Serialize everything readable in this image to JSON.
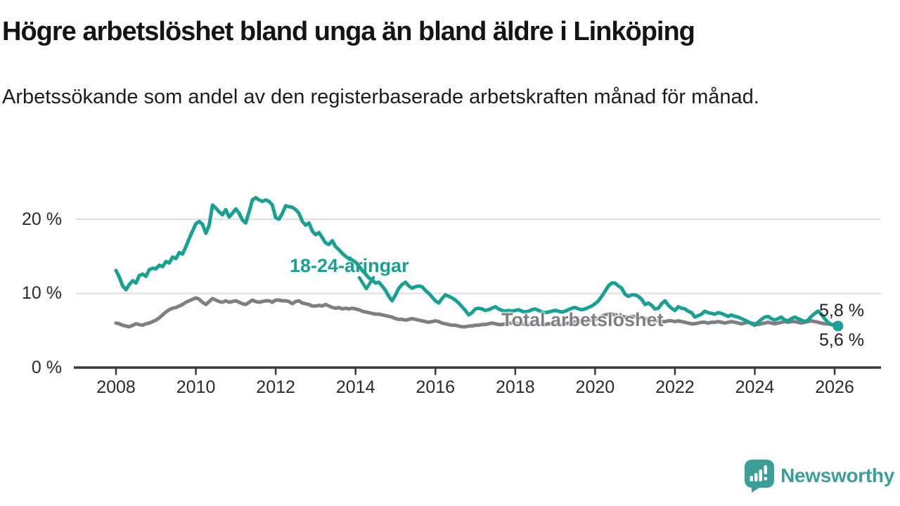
{
  "title": "Högre arbetslöshet bland unga än bland äldre i Linköping",
  "subtitle": "Arbetssökande som andel av den registerbaserade arbetskraften månad för månad.",
  "chart_data": {
    "type": "line",
    "title": "Högre arbetslöshet bland unga än bland äldre i Linköping",
    "x_unit": "month",
    "x_start": "2008-01",
    "x_end": "2026-02",
    "x_ticks": [
      "2008",
      "2010",
      "2012",
      "2014",
      "2016",
      "2018",
      "2020",
      "2022",
      "2024",
      "2026"
    ],
    "y_ticks": [
      {
        "value": 0,
        "label": "0 %"
      },
      {
        "value": 10,
        "label": "10 %"
      },
      {
        "value": 20,
        "label": "20 %"
      }
    ],
    "gridlines": [
      10,
      20
    ],
    "ylim": [
      0,
      24
    ],
    "legend_position": "inline-annotations",
    "series": [
      {
        "name": "18-24-åringar",
        "color": "#18A192",
        "end_label": "5,6 %",
        "end_dot": true,
        "values": [
          13.1,
          12.2,
          11.0,
          10.5,
          11.2,
          11.7,
          11.4,
          12.4,
          12.6,
          12.3,
          13.2,
          13.4,
          13.3,
          13.8,
          13.6,
          14.3,
          14.1,
          14.9,
          14.7,
          15.5,
          15.3,
          16.3,
          17.4,
          18.4,
          19.4,
          19.7,
          19.3,
          18.1,
          19.2,
          21.9,
          21.5,
          21.0,
          20.6,
          21.3,
          20.3,
          20.8,
          21.4,
          20.8,
          19.9,
          19.5,
          21.0,
          22.6,
          22.9,
          22.6,
          22.4,
          22.6,
          22.4,
          21.9,
          20.2,
          20.0,
          20.8,
          21.8,
          21.7,
          21.6,
          21.3,
          20.8,
          19.7,
          19.2,
          19.5,
          18.4,
          17.9,
          18.2,
          17.5,
          16.8,
          16.6,
          17.1,
          16.3,
          15.9,
          15.4,
          15.0,
          14.7,
          14.5,
          14.2,
          13.7,
          13.1,
          12.6,
          12.1,
          11.8,
          11.4,
          11.5,
          11.0,
          10.4,
          9.6,
          9.0,
          9.8,
          10.7,
          11.2,
          11.5,
          11.0,
          10.7,
          10.9,
          11.0,
          10.9,
          10.4,
          10.0,
          9.5,
          9.0,
          8.7,
          9.3,
          9.8,
          9.6,
          9.4,
          9.1,
          8.7,
          8.2,
          7.7,
          7.1,
          7.4,
          7.9,
          8.0,
          7.9,
          7.7,
          7.8,
          8.0,
          8.2,
          7.9,
          7.7,
          7.6,
          7.7,
          7.6,
          7.7,
          7.8,
          7.6,
          7.5,
          7.6,
          7.8,
          7.9,
          7.7,
          7.5,
          7.4,
          7.5,
          7.6,
          7.7,
          7.6,
          7.5,
          7.6,
          7.8,
          8.0,
          8.1,
          7.9,
          7.8,
          7.9,
          8.1,
          8.3,
          8.6,
          9.0,
          9.6,
          10.3,
          11.0,
          11.4,
          11.4,
          11.0,
          10.7,
          9.9,
          9.6,
          9.8,
          9.8,
          9.6,
          9.2,
          8.5,
          8.7,
          8.4,
          7.9,
          8.0,
          8.6,
          9.0,
          8.4,
          8.0,
          7.7,
          8.2,
          8.0,
          7.9,
          7.6,
          7.4,
          6.8,
          7.0,
          7.2,
          7.6,
          7.4,
          7.3,
          7.2,
          7.4,
          7.3,
          7.1,
          6.9,
          7.1,
          6.9,
          6.8,
          6.6,
          6.4,
          6.2,
          5.9,
          5.7,
          6.1,
          6.5,
          6.8,
          6.9,
          6.6,
          6.4,
          6.6,
          6.8,
          6.4,
          6.3,
          6.6,
          6.8,
          6.6,
          6.4,
          6.2,
          6.4,
          6.9,
          7.3,
          7.6,
          7.2,
          6.6,
          6.1,
          5.8,
          5.7,
          5.6
        ]
      },
      {
        "name": "Total arbetslöshet",
        "color": "#7F7F83",
        "end_label": "5,8 %",
        "end_dot": false,
        "values": [
          6.0,
          5.9,
          5.7,
          5.6,
          5.5,
          5.7,
          5.9,
          5.8,
          5.7,
          5.9,
          6.0,
          6.2,
          6.4,
          6.7,
          7.1,
          7.5,
          7.8,
          8.0,
          8.1,
          8.3,
          8.5,
          8.8,
          9.0,
          9.2,
          9.4,
          9.2,
          8.8,
          8.5,
          8.9,
          9.3,
          9.1,
          8.9,
          8.8,
          9.0,
          8.8,
          8.9,
          9.0,
          8.8,
          8.6,
          8.5,
          8.8,
          9.1,
          8.9,
          8.8,
          8.9,
          9.0,
          9.0,
          8.8,
          9.1,
          9.1,
          9.0,
          9.0,
          8.9,
          8.6,
          8.9,
          9.0,
          8.7,
          8.6,
          8.5,
          8.3,
          8.3,
          8.4,
          8.3,
          8.5,
          8.3,
          8.1,
          8.0,
          8.1,
          7.9,
          8.0,
          7.9,
          8.0,
          7.9,
          7.8,
          7.6,
          7.5,
          7.4,
          7.3,
          7.2,
          7.2,
          7.1,
          7.0,
          6.9,
          6.8,
          6.6,
          6.5,
          6.5,
          6.4,
          6.5,
          6.6,
          6.5,
          6.4,
          6.3,
          6.2,
          6.1,
          6.2,
          6.3,
          6.2,
          6.0,
          5.9,
          5.8,
          5.7,
          5.7,
          5.6,
          5.5,
          5.5,
          5.6,
          5.6,
          5.7,
          5.7,
          5.8,
          5.8,
          5.9,
          6.0,
          5.9,
          5.8,
          5.8,
          5.9,
          6.0,
          6.0,
          6.0,
          5.9,
          5.9,
          5.8,
          5.8,
          5.9,
          6.0,
          5.9,
          5.8,
          5.8,
          5.9,
          5.9,
          5.9,
          5.8,
          5.8,
          5.9,
          6.0,
          6.1,
          6.2,
          6.1,
          6.1,
          6.2,
          6.3,
          6.4,
          6.5,
          6.6,
          6.9,
          7.1,
          7.2,
          7.2,
          7.1,
          7.0,
          6.9,
          6.8,
          6.8,
          6.9,
          6.9,
          6.8,
          6.7,
          6.6,
          6.5,
          6.4,
          6.3,
          6.3,
          6.2,
          6.2,
          6.3,
          6.3,
          6.2,
          6.3,
          6.2,
          6.1,
          6.0,
          5.9,
          5.9,
          6.0,
          6.1,
          6.1,
          6.0,
          6.1,
          6.1,
          6.2,
          6.1,
          6.0,
          6.1,
          6.2,
          6.1,
          6.0,
          5.9,
          6.0,
          6.1,
          6.0,
          5.9,
          5.8,
          5.9,
          6.0,
          6.1,
          6.0,
          5.9,
          6.0,
          6.1,
          6.2,
          6.1,
          6.2,
          6.2,
          6.1,
          6.0,
          6.1,
          6.2,
          6.3,
          6.2,
          6.1,
          6.0,
          5.9,
          5.9,
          5.8,
          5.8,
          5.8
        ]
      }
    ]
  },
  "footer": {
    "logo_text": "Newsworthy",
    "logo_color": "#3B9F97"
  }
}
